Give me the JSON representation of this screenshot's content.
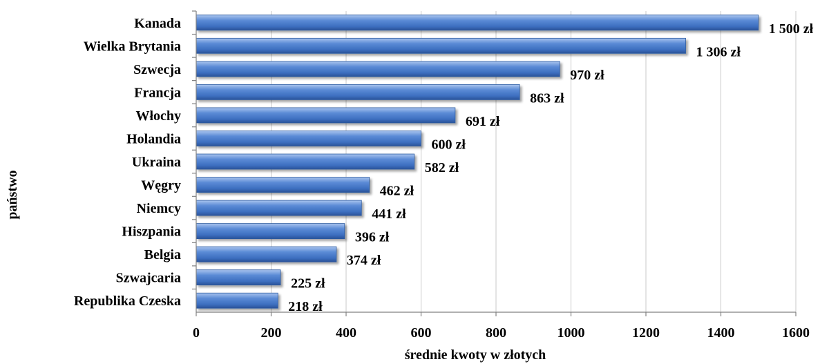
{
  "chart_data": {
    "type": "bar",
    "orientation": "horizontal",
    "categories": [
      "Kanada",
      "Wielka Brytania",
      "Szwecja",
      "Francja",
      "Włochy",
      "Holandia",
      "Ukraina",
      "Węgry",
      "Niemcy",
      "Hiszpania",
      "Belgia",
      "Szwajcaria",
      "Republika Czeska"
    ],
    "values": [
      1500,
      1306,
      970,
      863,
      691,
      600,
      582,
      462,
      441,
      396,
      374,
      225,
      218
    ],
    "value_labels": [
      "1 500 zł",
      "1 306 zł",
      "970 zł",
      "863 zł",
      "691 zł",
      "600 zł",
      "582 zł",
      "462 zł",
      "441 zł",
      "396 zł",
      "374 zł",
      "225 zł",
      "218 zł"
    ],
    "x_ticks": [
      "0",
      "200",
      "400",
      "600",
      "800",
      "1000",
      "1200",
      "1400",
      "1600"
    ],
    "xlim": [
      0,
      1600
    ],
    "xlabel": "średnie kwoty w złotych",
    "ylabel": "państwo",
    "grid": true,
    "bar_color": "#4a7cc9"
  }
}
